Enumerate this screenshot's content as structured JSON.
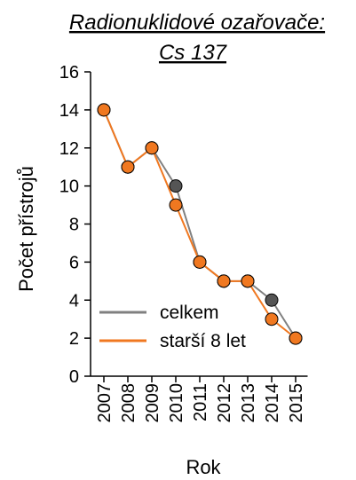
{
  "chart_data": {
    "type": "line",
    "title_lines": [
      "Radionuklidové ozařovače:",
      "Cs 137"
    ],
    "xlabel": "Rok",
    "ylabel": "Počet přístrojů",
    "categories": [
      "2007",
      "2008",
      "2009",
      "2010",
      "2011",
      "2012",
      "2013",
      "2014",
      "2015"
    ],
    "ylim": [
      0,
      16
    ],
    "yticks": [
      0,
      2,
      4,
      6,
      8,
      10,
      12,
      14,
      16
    ],
    "grid": false,
    "legend_position": "bottom-left",
    "series": [
      {
        "name": "celkem",
        "color": "#808080",
        "marker_color": "#555555",
        "values": [
          14,
          11,
          12,
          10,
          6,
          5,
          5,
          4,
          2
        ]
      },
      {
        "name": "starší 8 let",
        "color": "#F07820",
        "marker_color": "#F07820",
        "values": [
          14,
          11,
          12,
          9,
          6,
          5,
          5,
          3,
          2
        ]
      }
    ]
  }
}
